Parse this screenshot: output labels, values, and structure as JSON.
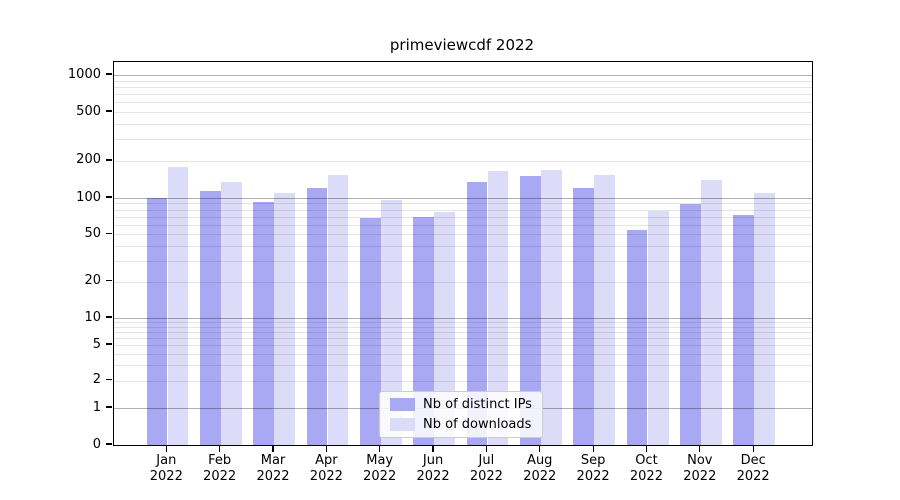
{
  "chart_data": {
    "type": "bar",
    "title": "primeviewcdf 2022",
    "categories": [
      "Jan 2022",
      "Feb 2022",
      "Mar 2022",
      "Apr 2022",
      "May 2022",
      "Jun 2022",
      "Jul 2022",
      "Aug 2022",
      "Sep 2022",
      "Oct 2022",
      "Nov 2022",
      "Dec 2022"
    ],
    "x_tick_months": [
      "Jan",
      "Feb",
      "Mar",
      "Apr",
      "May",
      "Jun",
      "Jul",
      "Aug",
      "Sep",
      "Oct",
      "Nov",
      "Dec"
    ],
    "x_tick_year": "2022",
    "series": [
      {
        "name": "Nb of distinct IPs",
        "color": "#a9a9f3",
        "values": [
          100,
          115,
          93,
          120,
          68,
          69,
          135,
          150,
          120,
          54,
          90,
          72
        ]
      },
      {
        "name": "Nb of downloads",
        "color": "#dcdcf8",
        "values": [
          180,
          135,
          110,
          155,
          97,
          77,
          165,
          170,
          155,
          78,
          140,
          110
        ]
      }
    ],
    "y_axis": {
      "scale": "symlog",
      "ticks": [
        0,
        1,
        2,
        5,
        10,
        20,
        50,
        100,
        200,
        500,
        1000
      ],
      "ylim": [
        0,
        1300
      ]
    },
    "grid": {
      "on": true,
      "major_lines": [
        1,
        10,
        100,
        1000
      ],
      "minor_lines": [
        2,
        3,
        4,
        5,
        6,
        7,
        8,
        9,
        20,
        30,
        40,
        50,
        60,
        70,
        80,
        90,
        200,
        300,
        400,
        500,
        600,
        700,
        800,
        900
      ]
    },
    "legend": {
      "entries": [
        "Nb of distinct IPs",
        "Nb of downloads"
      ],
      "position": "lower center"
    },
    "colors": {
      "bar_dark": "#a9a9f3",
      "bar_light": "#dcdcf8",
      "grid_major": "#b0b0b0",
      "grid_minor": "#e8e8e8",
      "spine": "#000000"
    }
  }
}
